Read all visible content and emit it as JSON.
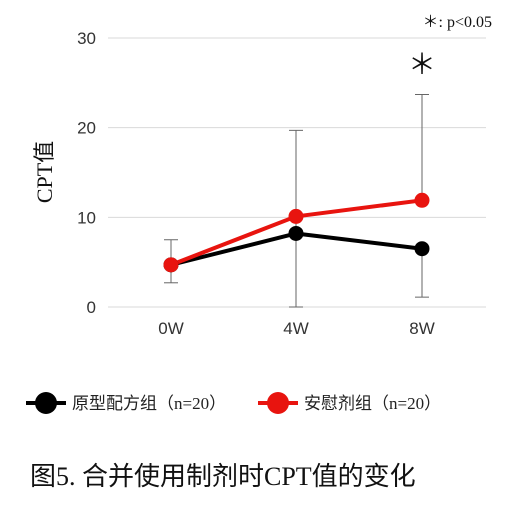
{
  "chart_data": {
    "type": "line",
    "categories": [
      "0W",
      "4W",
      "8W"
    ],
    "ylabel": "CPT值",
    "ylim": [
      0,
      30
    ],
    "yticks": [
      0,
      10,
      20,
      30
    ],
    "grid": true,
    "legend_position": "bottom",
    "series": [
      {
        "name": "原型配方组（n=20）",
        "color": "#000000",
        "values": [
          4.7,
          8.2,
          6.5
        ],
        "error_low": [
          2.7,
          0,
          1.1
        ],
        "error_high": [
          7.5,
          19.7,
          6.5
        ]
      },
      {
        "name": "安慰剂组（n=20）",
        "color": "#e8140f",
        "values": [
          4.7,
          10.1,
          11.9
        ],
        "error_low": [
          4.7,
          10.1,
          11.9
        ],
        "error_high": [
          4.7,
          10.1,
          23.7
        ]
      }
    ],
    "significance_note": "＊: p<0.05",
    "significance_marker": "＊",
    "significance_category": "8W"
  },
  "caption": "图5. 合并使用制剂时CPT值的变化"
}
